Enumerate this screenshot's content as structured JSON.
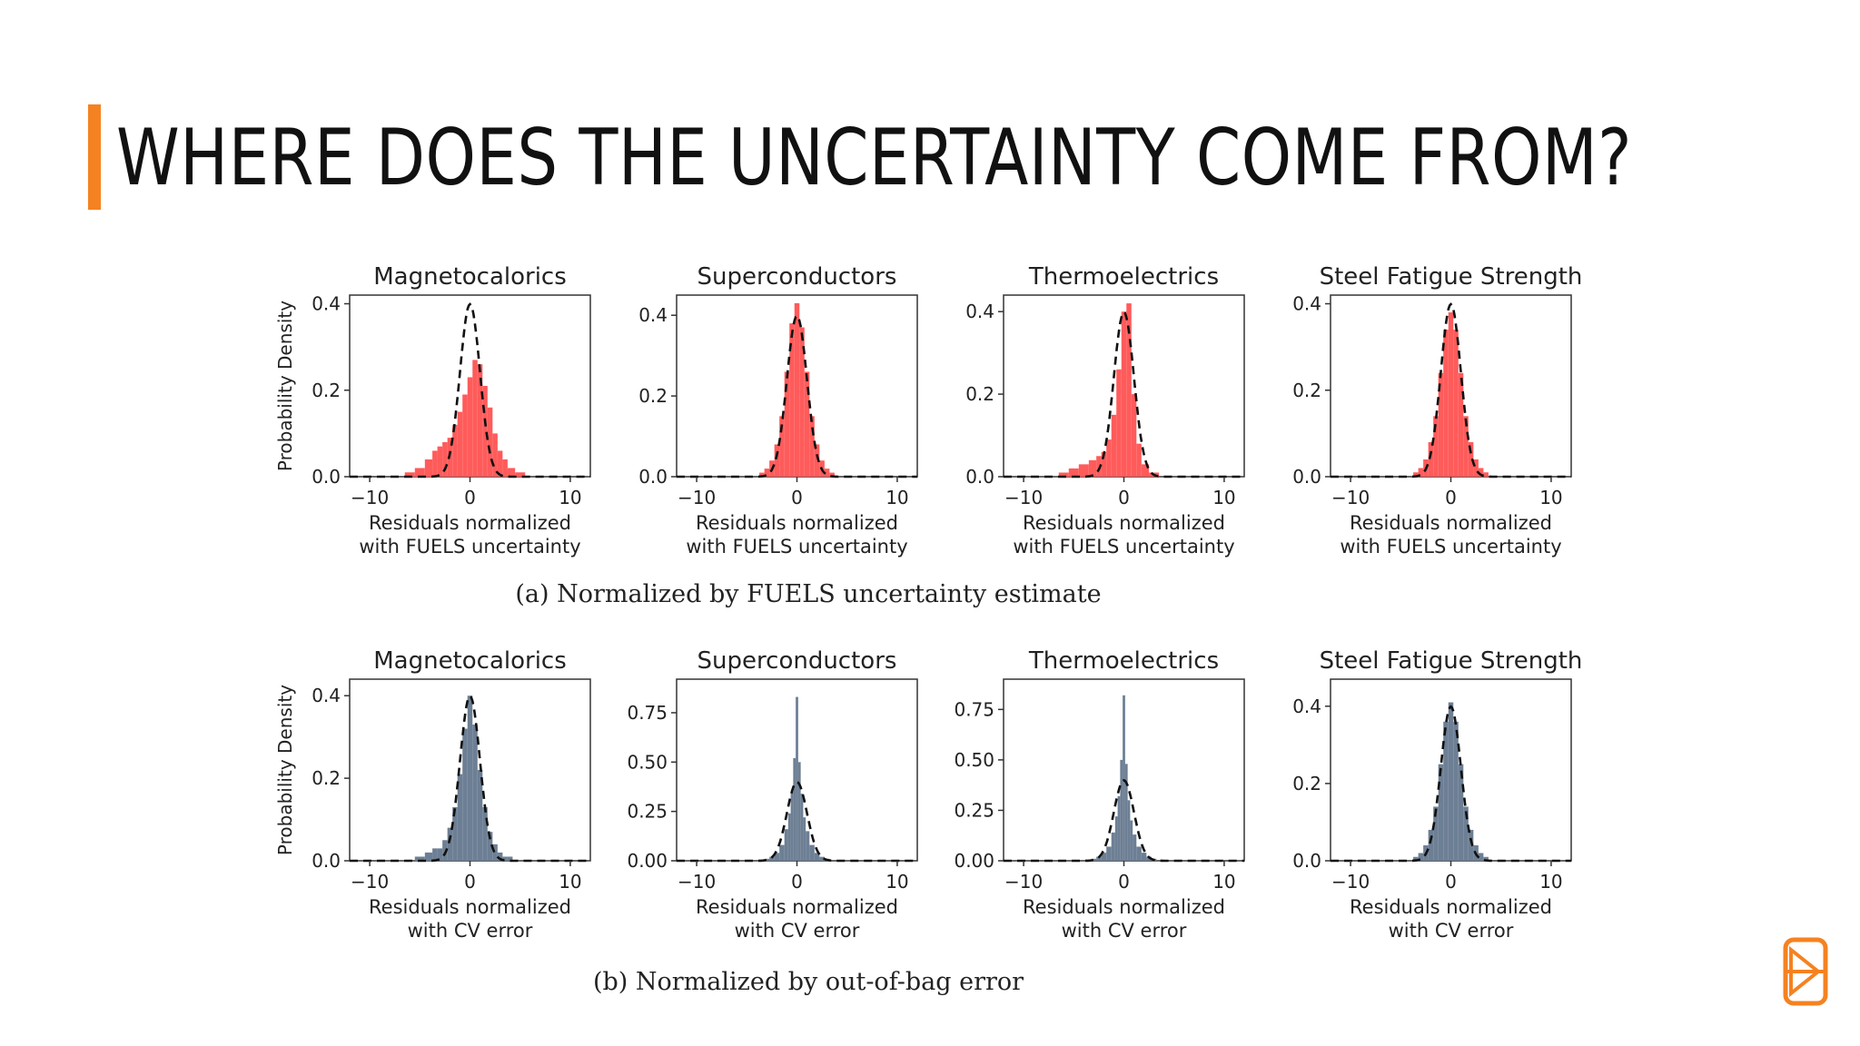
{
  "slide": {
    "title": "WHERE DOES THE UNCERTAINTY COME FROM?",
    "accent_color": "#f58220"
  },
  "logo": {
    "icon": "citrine-logo-icon",
    "color": "#f58220"
  },
  "chart_data": [
    {
      "type": "histogram",
      "row_caption": "(a) Normalized by FUELS uncertainty estimate",
      "histogram_color": "#ff5b5b",
      "reference_curve": "dashed standard normal",
      "panels": [
        {
          "title": "Magnetocalorics",
          "ylabel": "Probability Density",
          "xlabel": [
            "Residuals normalized",
            "with FUELS uncertainty"
          ],
          "xlim": [
            -12,
            12
          ],
          "ylim": [
            0,
            0.42
          ],
          "xticks": [
            "−10",
            "0",
            "10"
          ],
          "yticks": [
            "0.0",
            "0.2",
            "0.4"
          ],
          "x": [
            -6.0,
            -5.0,
            -4.0,
            -3.5,
            -3.0,
            -2.5,
            -2.0,
            -1.5,
            -1.0,
            -0.5,
            0.0,
            0.5,
            1.0,
            1.5,
            2.0,
            2.5,
            3.0,
            3.5,
            4.0,
            5.0
          ],
          "density": [
            0.01,
            0.02,
            0.04,
            0.06,
            0.07,
            0.08,
            0.09,
            0.12,
            0.15,
            0.19,
            0.23,
            0.27,
            0.26,
            0.21,
            0.16,
            0.1,
            0.06,
            0.04,
            0.02,
            0.01
          ]
        },
        {
          "title": "Superconductors",
          "ylabel": "",
          "xlabel": [
            "Residuals normalized",
            "with FUELS uncertainty"
          ],
          "xlim": [
            -12,
            12
          ],
          "ylim": [
            0,
            0.45
          ],
          "xticks": [
            "−10",
            "0",
            "10"
          ],
          "yticks": [
            "0.0",
            "0.2",
            "0.4"
          ],
          "x": [
            -3.5,
            -3.0,
            -2.5,
            -2.0,
            -1.5,
            -1.0,
            -0.5,
            0.0,
            0.5,
            1.0,
            1.5,
            2.0,
            2.5,
            3.0,
            3.5
          ],
          "density": [
            0.01,
            0.02,
            0.04,
            0.08,
            0.15,
            0.26,
            0.38,
            0.43,
            0.37,
            0.26,
            0.15,
            0.08,
            0.04,
            0.02,
            0.01
          ]
        },
        {
          "title": "Thermoelectrics",
          "ylabel": "",
          "xlabel": [
            "Residuals normalized",
            "with FUELS uncertainty"
          ],
          "xlim": [
            -12,
            12
          ],
          "ylim": [
            0,
            0.44
          ],
          "xticks": [
            "−10",
            "0",
            "10"
          ],
          "yticks": [
            "0.0",
            "0.2",
            "0.4"
          ],
          "x": [
            -6.0,
            -5.0,
            -4.0,
            -3.0,
            -2.5,
            -2.0,
            -1.5,
            -1.0,
            -0.5,
            0.0,
            0.5,
            1.0,
            1.5,
            2.0,
            3.0
          ],
          "density": [
            0.01,
            0.02,
            0.03,
            0.04,
            0.05,
            0.06,
            0.09,
            0.15,
            0.26,
            0.4,
            0.42,
            0.2,
            0.08,
            0.03,
            0.01
          ]
        },
        {
          "title": "Steel Fatigue Strength",
          "ylabel": "",
          "xlabel": [
            "Residuals normalized",
            "with FUELS uncertainty"
          ],
          "xlim": [
            -12,
            12
          ],
          "ylim": [
            0,
            0.42
          ],
          "xticks": [
            "−10",
            "0",
            "10"
          ],
          "yticks": [
            "0.0",
            "0.2",
            "0.4"
          ],
          "x": [
            -3.5,
            -3.0,
            -2.5,
            -2.0,
            -1.5,
            -1.0,
            -0.5,
            0.0,
            0.5,
            1.0,
            1.5,
            2.0,
            2.5,
            3.0,
            3.5
          ],
          "density": [
            0.01,
            0.02,
            0.04,
            0.08,
            0.14,
            0.24,
            0.34,
            0.38,
            0.34,
            0.24,
            0.14,
            0.08,
            0.04,
            0.02,
            0.01
          ]
        }
      ]
    },
    {
      "type": "histogram",
      "row_caption": "(b) Normalized by out-of-bag error",
      "histogram_color": "#6d7f94",
      "reference_curve": "dashed standard normal",
      "panels": [
        {
          "title": "Magnetocalorics",
          "ylabel": "Probability Density",
          "xlabel": [
            "Residuals normalized",
            "with CV error"
          ],
          "xlim": [
            -12,
            12
          ],
          "ylim": [
            0,
            0.44
          ],
          "xticks": [
            "−10",
            "0",
            "10"
          ],
          "yticks": [
            "0.0",
            "0.2",
            "0.4"
          ],
          "x": [
            -5.0,
            -4.0,
            -3.5,
            -3.0,
            -2.5,
            -2.0,
            -1.5,
            -1.0,
            -0.5,
            0.0,
            0.5,
            1.0,
            1.5,
            2.0,
            2.5,
            3.0,
            3.5,
            4.0
          ],
          "density": [
            0.01,
            0.02,
            0.03,
            0.03,
            0.05,
            0.08,
            0.13,
            0.21,
            0.32,
            0.4,
            0.33,
            0.22,
            0.13,
            0.07,
            0.04,
            0.02,
            0.01,
            0.01
          ]
        },
        {
          "title": "Superconductors",
          "ylabel": "",
          "xlabel": [
            "Residuals normalized",
            "with CV error"
          ],
          "xlim": [
            -12,
            12
          ],
          "ylim": [
            0,
            0.92
          ],
          "xticks": [
            "−10",
            "0",
            "10"
          ],
          "yticks": [
            "0.00",
            "0.25",
            "0.50",
            "0.75"
          ],
          "x": [
            -3.0,
            -2.5,
            -2.0,
            -1.5,
            -1.0,
            -0.75,
            -0.5,
            -0.25,
            0.0,
            0.25,
            0.5,
            0.75,
            1.0,
            1.5,
            2.0,
            2.5,
            3.0
          ],
          "density": [
            0.01,
            0.02,
            0.04,
            0.08,
            0.16,
            0.24,
            0.35,
            0.52,
            0.83,
            0.5,
            0.34,
            0.22,
            0.15,
            0.08,
            0.04,
            0.02,
            0.01
          ]
        },
        {
          "title": "Thermoelectrics",
          "ylabel": "",
          "xlabel": [
            "Residuals normalized",
            "with CV error"
          ],
          "xlim": [
            -12,
            12
          ],
          "ylim": [
            0,
            0.9
          ],
          "xticks": [
            "−10",
            "0",
            "10"
          ],
          "yticks": [
            "0.00",
            "0.25",
            "0.50",
            "0.75"
          ],
          "x": [
            -3.0,
            -2.5,
            -2.0,
            -1.5,
            -1.0,
            -0.75,
            -0.5,
            -0.25,
            0.0,
            0.25,
            0.5,
            0.75,
            1.0,
            1.5,
            2.0,
            2.5,
            3.0
          ],
          "density": [
            0.01,
            0.02,
            0.04,
            0.07,
            0.14,
            0.22,
            0.32,
            0.5,
            0.82,
            0.48,
            0.3,
            0.2,
            0.13,
            0.07,
            0.04,
            0.02,
            0.01
          ]
        },
        {
          "title": "Steel Fatigue Strength",
          "ylabel": "",
          "xlabel": [
            "Residuals normalized",
            "with CV error"
          ],
          "xlim": [
            -12,
            12
          ],
          "ylim": [
            0,
            0.47
          ],
          "xticks": [
            "−10",
            "0",
            "10"
          ],
          "yticks": [
            "0.0",
            "0.2",
            "0.4"
          ],
          "x": [
            -3.5,
            -3.0,
            -2.5,
            -2.0,
            -1.5,
            -1.0,
            -0.5,
            0.0,
            0.5,
            1.0,
            1.5,
            2.0,
            2.5,
            3.0,
            3.5
          ],
          "density": [
            0.01,
            0.02,
            0.04,
            0.08,
            0.14,
            0.25,
            0.36,
            0.41,
            0.36,
            0.25,
            0.14,
            0.08,
            0.04,
            0.02,
            0.01
          ]
        }
      ]
    }
  ]
}
